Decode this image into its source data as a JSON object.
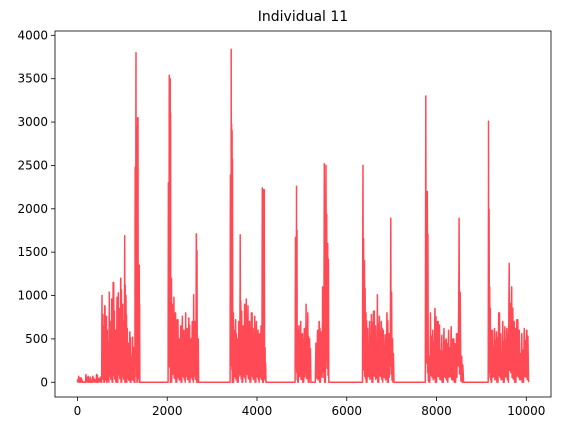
{
  "chart_data": {
    "type": "line",
    "title": "Individual 11",
    "xlabel": "",
    "ylabel": "",
    "xlim": [
      -500,
      10550
    ],
    "ylim": [
      -170,
      4050
    ],
    "xticks": [
      0,
      2000,
      4000,
      6000,
      8000,
      10000
    ],
    "yticks": [
      0,
      500,
      1000,
      1500,
      2000,
      2500,
      3000,
      3500,
      4000
    ],
    "grid": false,
    "legend": "none",
    "series": [
      {
        "color": "#ff4a55",
        "x_range": [
          0,
          10050
        ],
        "baseline": 0,
        "bursts": [
          {
            "start": 0,
            "end": 130,
            "peaks": [
              30,
              70,
              20,
              50,
              40,
              10
            ]
          },
          {
            "start": 180,
            "end": 330,
            "peaks": [
              90,
              40,
              70,
              30,
              60,
              20
            ]
          },
          {
            "start": 330,
            "end": 540,
            "peaks": [
              70,
              30,
              90,
              40,
              60
            ]
          },
          {
            "start": 540,
            "end": 700,
            "peaks": [
              1000,
              780,
              650,
              880,
              520,
              760,
              600,
              400
            ]
          },
          {
            "start": 700,
            "end": 900,
            "peaks": [
              1040,
              700,
              960,
              1150,
              820,
              600,
              980
            ]
          },
          {
            "start": 900,
            "end": 1100,
            "peaks": [
              1030,
              850,
              1200,
              900,
              700,
              1690,
              1000
            ]
          },
          {
            "start": 1100,
            "end": 1280,
            "peaks": [
              620,
              450,
              580,
              300,
              520,
              400
            ]
          },
          {
            "start": 1280,
            "end": 1390,
            "peaks": [
              2480,
              3800,
              1300,
              3050,
              800,
              1350
            ]
          },
          {
            "start": 2020,
            "end": 2100,
            "peaks": [
              2300,
              3540,
              3500,
              1200
            ]
          },
          {
            "start": 2100,
            "end": 2400,
            "peaks": [
              900,
              980,
              800,
              720,
              500,
              650,
              760,
              600
            ]
          },
          {
            "start": 2400,
            "end": 2580,
            "peaks": [
              800,
              620,
              740,
              500,
              700
            ]
          },
          {
            "start": 2580,
            "end": 2700,
            "peaks": [
              1010,
              700,
              1710,
              500
            ]
          },
          {
            "start": 3400,
            "end": 3480,
            "peaks": [
              2390,
              3840,
              2900,
              800
            ]
          },
          {
            "start": 3480,
            "end": 3750,
            "peaks": [
              600,
              720,
              500,
              700,
              1700,
              820,
              650,
              900
            ]
          },
          {
            "start": 3750,
            "end": 4050,
            "peaks": [
              960,
              880,
              700,
              800,
              620,
              760,
              700,
              600
            ]
          },
          {
            "start": 4050,
            "end": 4200,
            "peaks": [
              560,
              650,
              2240,
              2220,
              400
            ]
          },
          {
            "start": 4850,
            "end": 4920,
            "peaks": [
              1670,
              2260,
              600
            ]
          },
          {
            "start": 4920,
            "end": 5200,
            "peaks": [
              650,
              700,
              560,
              620,
              900,
              800,
              500
            ]
          },
          {
            "start": 5300,
            "end": 5600,
            "peaks": [
              450,
              600,
              700,
              580,
              1100,
              2520,
              2500,
              1600
            ]
          },
          {
            "start": 6350,
            "end": 6450,
            "peaks": [
              2500,
              1400,
              800
            ]
          },
          {
            "start": 6450,
            "end": 6800,
            "peaks": [
              620,
              700,
              780,
              820,
              650,
              1010,
              760,
              700
            ]
          },
          {
            "start": 6800,
            "end": 7050,
            "peaks": [
              600,
              550,
              800,
              560,
              1890,
              500
            ]
          },
          {
            "start": 7750,
            "end": 7850,
            "peaks": [
              3300,
              2200,
              300
            ]
          },
          {
            "start": 7850,
            "end": 8250,
            "peaks": [
              800,
              600,
              850,
              700,
              660,
              540,
              620,
              500
            ]
          },
          {
            "start": 8250,
            "end": 8600,
            "peaks": [
              600,
              640,
              500,
              560,
              1890,
              300
            ]
          },
          {
            "start": 9150,
            "end": 9230,
            "peaks": [
              3010,
              1100,
              600
            ]
          },
          {
            "start": 9230,
            "end": 9600,
            "peaks": [
              600,
              620,
              580,
              800,
              560,
              700,
              640,
              620
            ]
          },
          {
            "start": 9600,
            "end": 10050,
            "peaks": [
              1370,
              1100,
              700,
              720,
              600,
              560,
              620,
              600
            ]
          }
        ]
      }
    ]
  }
}
